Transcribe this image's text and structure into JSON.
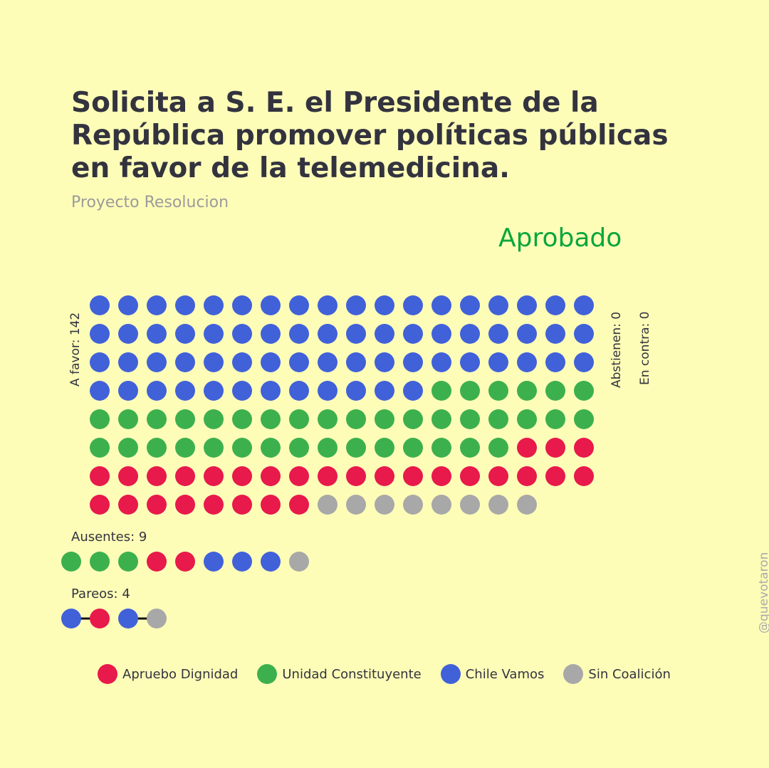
{
  "title": "Solicita a S. E. el Presidente de la República promover políticas públicas en favor de la telemedicina.",
  "subtitle": "Proyecto Resolucion",
  "result": "Aprobado",
  "labels": {
    "favor": "A favor: 142",
    "abstienen": "Abstienen: 0",
    "contra": "En contra: 0",
    "ausentes": "Ausentes: 9",
    "pareos": "Pareos: 4"
  },
  "credit": "@quevotaron",
  "colors": {
    "apruebo": "#e8194b",
    "unidad": "#3db04e",
    "chile": "#4161d9",
    "sin": "#a8a8a8"
  },
  "legend": [
    {
      "key": "apruebo",
      "label": "Apruebo Dignidad"
    },
    {
      "key": "unidad",
      "label": "Unidad Constituyente"
    },
    {
      "key": "chile",
      "label": "Chile Vamos"
    },
    {
      "key": "sin",
      "label": "Sin Coalición"
    }
  ],
  "chart_data": {
    "type": "waffle",
    "columns": 18,
    "a_favor": {
      "total": 142,
      "groups": [
        {
          "key": "chile",
          "count": 66
        },
        {
          "key": "unidad",
          "count": 39
        },
        {
          "key": "apruebo",
          "count": 29
        },
        {
          "key": "sin",
          "count": 8
        }
      ]
    },
    "abstienen": {
      "total": 0,
      "groups": []
    },
    "en_contra": {
      "total": 0,
      "groups": []
    },
    "ausentes": {
      "total": 9,
      "groups": [
        {
          "key": "unidad",
          "count": 3
        },
        {
          "key": "apruebo",
          "count": 2
        },
        {
          "key": "chile",
          "count": 3
        },
        {
          "key": "sin",
          "count": 1
        }
      ]
    },
    "pareos": {
      "total": 4,
      "pairs": [
        [
          "chile",
          "apruebo"
        ],
        [
          "chile",
          "sin"
        ]
      ]
    }
  }
}
